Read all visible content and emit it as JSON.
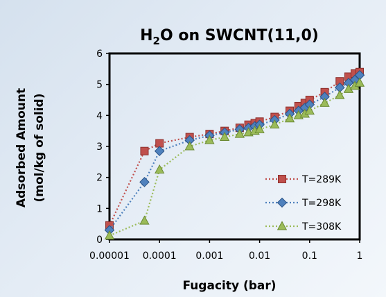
{
  "chart_data": {
    "type": "scatter",
    "title_parts": {
      "pre": "H",
      "sub": "2",
      "post": "O on SWCNT(11,0)"
    },
    "xlabel": "Fugacity (bar)",
    "ylabel_line1": "Adsorbed Amount",
    "ylabel_line2": "(mol/kg of solid)",
    "x_scale": "log",
    "xlim": [
      1e-05,
      1
    ],
    "ylim": [
      0,
      6
    ],
    "x_ticks": [
      {
        "value": 1e-05,
        "label": "0.00001"
      },
      {
        "value": 0.0001,
        "label": "0.0001"
      },
      {
        "value": 0.001,
        "label": "0.001"
      },
      {
        "value": 0.01,
        "label": "0.01"
      },
      {
        "value": 0.1,
        "label": "0.1"
      },
      {
        "value": 1,
        "label": "1"
      }
    ],
    "y_ticks": [
      {
        "value": 0,
        "label": "0"
      },
      {
        "value": 1,
        "label": "1"
      },
      {
        "value": 2,
        "label": "2"
      },
      {
        "value": 3,
        "label": "3"
      },
      {
        "value": 4,
        "label": "4"
      },
      {
        "value": 5,
        "label": "5"
      },
      {
        "value": 6,
        "label": "6"
      }
    ],
    "grid": false,
    "legend_position": "bottom-right",
    "series": [
      {
        "name": "T=289K",
        "marker": "square",
        "color": "#c0504d",
        "edge": "#8c2f2c",
        "points": [
          [
            1e-05,
            0.45
          ],
          [
            5e-05,
            2.85
          ],
          [
            0.0001,
            3.1
          ],
          [
            0.0004,
            3.3
          ],
          [
            0.001,
            3.4
          ],
          [
            0.002,
            3.5
          ],
          [
            0.004,
            3.6
          ],
          [
            0.006,
            3.7
          ],
          [
            0.008,
            3.75
          ],
          [
            0.01,
            3.8
          ],
          [
            0.02,
            3.95
          ],
          [
            0.04,
            4.15
          ],
          [
            0.06,
            4.3
          ],
          [
            0.08,
            4.4
          ],
          [
            0.1,
            4.5
          ],
          [
            0.2,
            4.75
          ],
          [
            0.4,
            5.1
          ],
          [
            0.6,
            5.25
          ],
          [
            0.8,
            5.35
          ],
          [
            1,
            5.4
          ]
        ]
      },
      {
        "name": "T=298K",
        "marker": "diamond",
        "color": "#4f81bd",
        "edge": "#2c5487",
        "points": [
          [
            1e-05,
            0.3
          ],
          [
            5e-05,
            1.85
          ],
          [
            0.0001,
            2.85
          ],
          [
            0.0004,
            3.2
          ],
          [
            0.001,
            3.35
          ],
          [
            0.002,
            3.45
          ],
          [
            0.004,
            3.55
          ],
          [
            0.006,
            3.6
          ],
          [
            0.008,
            3.65
          ],
          [
            0.01,
            3.7
          ],
          [
            0.02,
            3.85
          ],
          [
            0.04,
            4.05
          ],
          [
            0.06,
            4.15
          ],
          [
            0.08,
            4.25
          ],
          [
            0.1,
            4.35
          ],
          [
            0.2,
            4.6
          ],
          [
            0.4,
            4.9
          ],
          [
            0.6,
            5.05
          ],
          [
            0.8,
            5.15
          ],
          [
            1,
            5.3
          ]
        ]
      },
      {
        "name": "T=308K",
        "marker": "triangle",
        "color": "#9bbb59",
        "edge": "#6b8a34",
        "points": [
          [
            1e-05,
            0.12
          ],
          [
            5e-05,
            0.6
          ],
          [
            0.0001,
            2.25
          ],
          [
            0.0004,
            3.0
          ],
          [
            0.001,
            3.2
          ],
          [
            0.002,
            3.3
          ],
          [
            0.004,
            3.4
          ],
          [
            0.006,
            3.45
          ],
          [
            0.008,
            3.5
          ],
          [
            0.01,
            3.55
          ],
          [
            0.02,
            3.7
          ],
          [
            0.04,
            3.9
          ],
          [
            0.06,
            4.0
          ],
          [
            0.08,
            4.05
          ],
          [
            0.1,
            4.15
          ],
          [
            0.2,
            4.4
          ],
          [
            0.4,
            4.65
          ],
          [
            0.6,
            4.85
          ],
          [
            0.8,
            4.95
          ],
          [
            1,
            5.05
          ]
        ]
      }
    ]
  }
}
